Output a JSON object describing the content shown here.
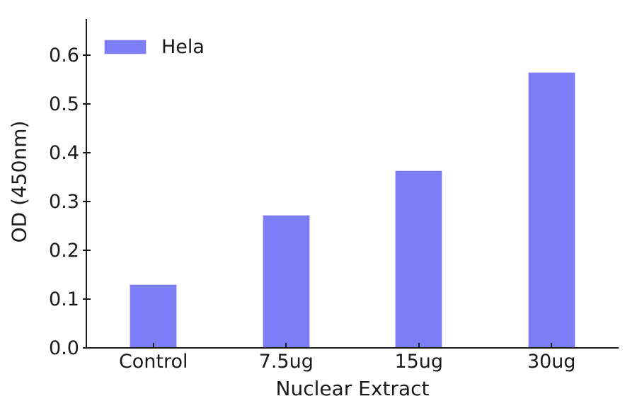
{
  "chart_data": {
    "type": "bar",
    "title": "",
    "xlabel": "Nuclear Extract",
    "ylabel": "OD (450nm)",
    "categories": [
      "Control",
      "7.5ug",
      "15ug",
      "30ug"
    ],
    "series": [
      {
        "name": "Hela",
        "values": [
          0.13,
          0.273,
          0.364,
          0.565
        ]
      }
    ],
    "ylim": [
      0,
      0.675
    ],
    "yticks": [
      0.0,
      0.1,
      0.2,
      0.3,
      0.4,
      0.5,
      0.6
    ],
    "ytick_labels": [
      "0.0",
      "0.1",
      "0.2",
      "0.3",
      "0.4",
      "0.5",
      "0.6"
    ],
    "grid": false,
    "legend_position": "upper-left",
    "legend_frame": false,
    "colors": {
      "bar": "#7d7df5",
      "bar_edge": "#d0d0fa",
      "axis": "#1a1a1a",
      "text": "#1a1a1a",
      "background": "#ffffff"
    }
  }
}
